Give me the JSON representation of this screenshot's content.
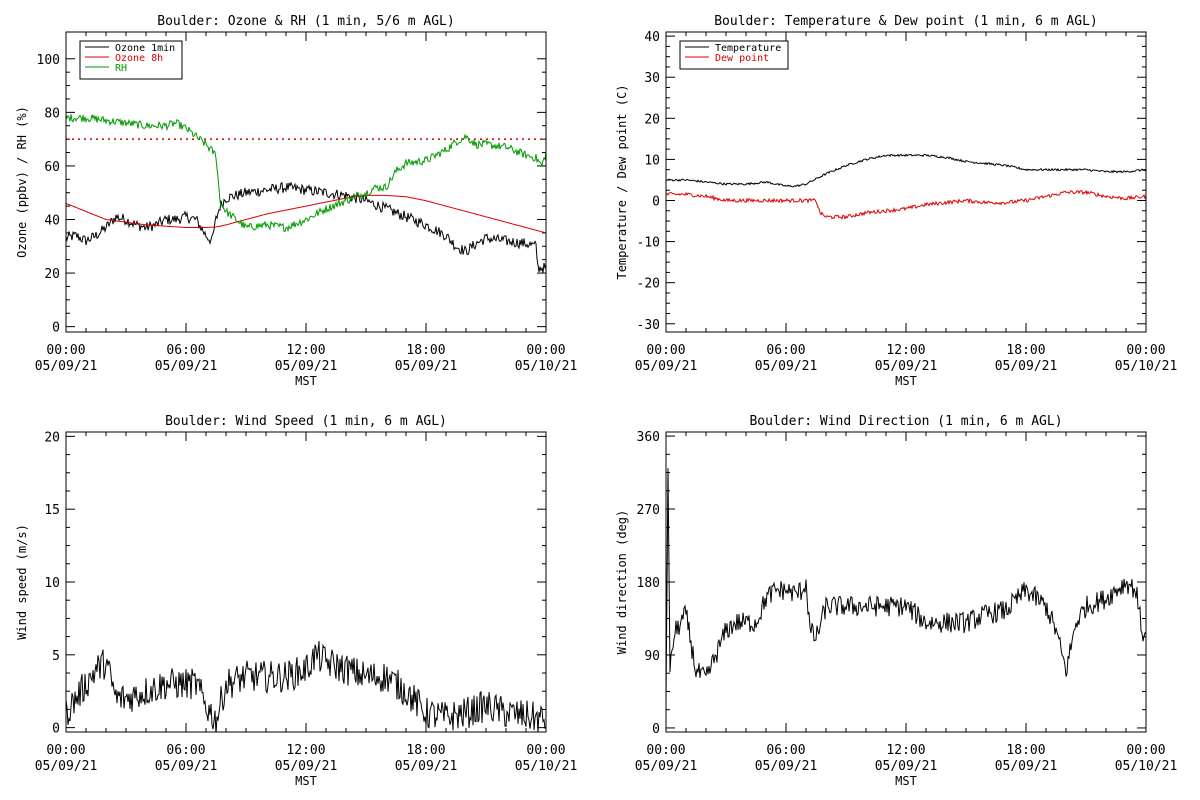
{
  "chart_data": [
    {
      "type": "line",
      "title": "Boulder: Ozone & RH (1 min, 5/6 m AGL)",
      "xlabel": "MST",
      "ylabel": "Ozone (ppbv) / RH (%)",
      "xlim": [
        "05/09/21 00:00",
        "05/10/21 00:00"
      ],
      "ylim": [
        -2,
        110
      ],
      "x_ticks": [
        [
          "00:00",
          "05/09/21"
        ],
        [
          "06:00",
          "05/09/21"
        ],
        [
          "12:00",
          "05/09/21"
        ],
        [
          "18:00",
          "05/09/21"
        ],
        [
          "00:00",
          "05/10/21"
        ]
      ],
      "y_ticks": [
        0,
        20,
        40,
        60,
        80,
        100
      ],
      "legend": "top-left",
      "reference_line": {
        "y": 70,
        "style": "dotted",
        "color": "#cc0000"
      },
      "series": [
        {
          "name": "Ozone 1min",
          "color": "#000000",
          "noise": 2,
          "x": [
            0,
            0.5,
            1,
            1.5,
            2,
            2.5,
            3,
            3.5,
            4,
            4.5,
            5,
            5.5,
            6,
            6.5,
            7,
            7.3,
            7.5,
            7.7,
            8,
            9,
            10,
            11,
            12,
            13,
            14,
            15,
            16,
            17,
            18,
            19,
            19.5,
            20,
            20.5,
            21,
            22,
            23,
            23.5,
            23.6,
            24
          ],
          "y": [
            33,
            34,
            32,
            34,
            37,
            41,
            40,
            38,
            37,
            38,
            40,
            40,
            41,
            40,
            34,
            32,
            40,
            45,
            48,
            50,
            51,
            52,
            51,
            50,
            49,
            47,
            44,
            41,
            38,
            34,
            30,
            28,
            31,
            33,
            32,
            31,
            30,
            22,
            22
          ]
        },
        {
          "name": "Ozone 8h",
          "color": "#dd0000",
          "x": [
            0,
            1,
            2,
            3,
            4,
            5,
            6,
            7,
            7.5,
            8,
            9,
            10,
            11,
            12,
            13,
            14,
            15,
            16,
            17,
            18,
            19,
            20,
            21,
            22,
            23,
            24
          ],
          "y": [
            46,
            43,
            40,
            39,
            38,
            37.5,
            37,
            37,
            37.2,
            38,
            40,
            42,
            43.5,
            45,
            46.5,
            48,
            49,
            49,
            48.5,
            47,
            45,
            43,
            41,
            39,
            37,
            35
          ]
        },
        {
          "name": "RH",
          "color": "#009900",
          "noise": 1.5,
          "x": [
            0,
            1,
            2,
            3,
            4,
            5,
            5.5,
            6,
            6.5,
            7,
            7.5,
            7.7,
            8,
            8.5,
            9,
            10,
            11,
            12,
            13,
            14,
            15,
            15.5,
            16,
            16.5,
            17,
            18,
            19,
            19.5,
            20,
            20.5,
            21,
            22,
            23,
            23.5,
            23.8,
            24
          ],
          "y": [
            78,
            78,
            77,
            76,
            75,
            75,
            76,
            74,
            71,
            68,
            64,
            47,
            43,
            40,
            37,
            38,
            37,
            40,
            44,
            47,
            50,
            52,
            52,
            58,
            61,
            62,
            66,
            69,
            71,
            68,
            68,
            67,
            64,
            63,
            60,
            65
          ]
        }
      ]
    },
    {
      "type": "line",
      "title": "Boulder: Temperature & Dew point (1 min, 6 m AGL)",
      "xlabel": "MST",
      "ylabel": "Temperature / Dew point (C)",
      "xlim": [
        "05/09/21 00:00",
        "05/10/21 00:00"
      ],
      "ylim": [
        -32,
        41
      ],
      "x_ticks": [
        [
          "00:00",
          "05/09/21"
        ],
        [
          "06:00",
          "05/09/21"
        ],
        [
          "12:00",
          "05/09/21"
        ],
        [
          "18:00",
          "05/09/21"
        ],
        [
          "00:00",
          "05/10/21"
        ]
      ],
      "y_ticks": [
        -30,
        -20,
        -10,
        0,
        10,
        20,
        30,
        40
      ],
      "legend": "top-left",
      "series": [
        {
          "name": "Temperature",
          "color": "#000000",
          "noise": 0.25,
          "x": [
            0,
            1,
            2,
            3,
            4,
            5,
            6,
            6.5,
            7,
            8,
            9,
            10,
            11,
            12,
            13,
            14,
            15,
            16,
            17,
            18,
            19,
            20,
            21,
            22,
            23,
            24
          ],
          "y": [
            5,
            5,
            4.5,
            4,
            4,
            4.5,
            3.5,
            3.5,
            4,
            6.5,
            8.5,
            10,
            11,
            11,
            11,
            10.5,
            9.5,
            9,
            8.5,
            7.5,
            7.5,
            7.5,
            7.5,
            7,
            7,
            7.5
          ]
        },
        {
          "name": "Dew point",
          "color": "#dd0000",
          "noise": 0.45,
          "x": [
            0,
            1,
            2,
            3,
            4,
            5,
            6,
            7,
            7.5,
            7.7,
            8,
            9,
            10,
            11,
            12,
            13,
            14,
            15,
            16,
            17,
            18,
            19,
            20,
            21,
            22,
            23,
            24
          ],
          "y": [
            1.5,
            1.5,
            1,
            0,
            0,
            0,
            0,
            0,
            0,
            -3,
            -4,
            -4,
            -3,
            -2.5,
            -2,
            -1,
            -0.5,
            0,
            -0.5,
            -0.5,
            0,
            1,
            2,
            2,
            1,
            0.5,
            1
          ]
        }
      ]
    },
    {
      "type": "line",
      "title": "Boulder: Wind Speed (1 min, 6 m AGL)",
      "xlabel": "MST",
      "ylabel": "Wind speed (m/s)",
      "xlim": [
        "05/09/21 00:00",
        "05/10/21 00:00"
      ],
      "ylim": [
        -0.3,
        20.3
      ],
      "x_ticks": [
        [
          "00:00",
          "05/09/21"
        ],
        [
          "06:00",
          "05/09/21"
        ],
        [
          "12:00",
          "05/09/21"
        ],
        [
          "18:00",
          "05/09/21"
        ],
        [
          "00:00",
          "05/10/21"
        ]
      ],
      "y_ticks": [
        0,
        5,
        10,
        15,
        20
      ],
      "series": [
        {
          "name": "",
          "color": "#000000",
          "noise": 1.1,
          "x": [
            0,
            0.5,
            1,
            1.5,
            2,
            2.5,
            3,
            4,
            5,
            6,
            6.5,
            7,
            7.5,
            8,
            9,
            10,
            11,
            12,
            12.5,
            13,
            14,
            15,
            16,
            17,
            18,
            19,
            20,
            21,
            22,
            23,
            24
          ],
          "y": [
            1,
            2,
            3,
            4,
            4.5,
            2,
            2,
            2.5,
            3,
            3,
            3,
            1.5,
            0.5,
            3,
            3.5,
            3.5,
            3.5,
            4,
            5,
            4.5,
            4,
            3.5,
            3.5,
            2.5,
            1,
            0.7,
            1,
            1.5,
            1,
            0.8,
            0.5
          ]
        }
      ]
    },
    {
      "type": "line",
      "title": "Boulder: Wind Direction (1 min, 6 m AGL)",
      "xlabel": "MST",
      "ylabel": "Wind direction (deg)",
      "xlim": [
        "05/09/21 00:00",
        "05/10/21 00:00"
      ],
      "ylim": [
        -5,
        365
      ],
      "x_ticks": [
        [
          "00:00",
          "05/09/21"
        ],
        [
          "06:00",
          "05/09/21"
        ],
        [
          "12:00",
          "05/09/21"
        ],
        [
          "18:00",
          "05/09/21"
        ],
        [
          "00:00",
          "05/10/21"
        ]
      ],
      "y_ticks": [
        0,
        90,
        180,
        270,
        360
      ],
      "series": [
        {
          "name": "",
          "color": "#000000",
          "noise": 13,
          "x": [
            0,
            0.1,
            0.2,
            0.3,
            0.5,
            1,
            1.5,
            2,
            2.5,
            3,
            3.5,
            4,
            4.5,
            5,
            5.5,
            6,
            6.5,
            6.8,
            7,
            7.2,
            7.5,
            8,
            9,
            10,
            11,
            12,
            13,
            14,
            15,
            16,
            17,
            18,
            19,
            19.5,
            20,
            20.5,
            21,
            22,
            23,
            23.5,
            23.8,
            24
          ],
          "y": [
            20,
            330,
            60,
            100,
            120,
            140,
            70,
            60,
            90,
            120,
            130,
            130,
            130,
            160,
            170,
            170,
            165,
            170,
            180,
            120,
            110,
            150,
            150,
            150,
            150,
            150,
            130,
            130,
            130,
            140,
            145,
            170,
            150,
            120,
            70,
            130,
            150,
            160,
            180,
            170,
            120,
            110
          ]
        }
      ]
    }
  ]
}
